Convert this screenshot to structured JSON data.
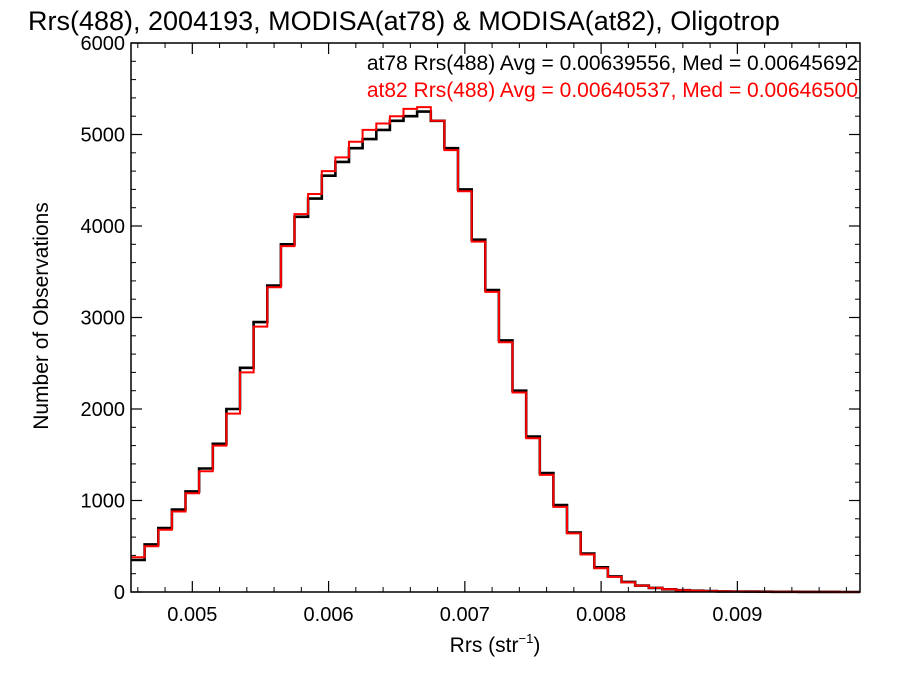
{
  "chart_data": {
    "type": "line",
    "style": "step-histogram",
    "title": "Rrs(488), 2004193, MODISA(at78) & MODISA(at82), Oligotrop",
    "xlabel_main": "Rrs (str",
    "xlabel_sup": "−1",
    "xlabel_close": ")",
    "ylabel": "Number of Observations",
    "xlim": [
      0.00455,
      0.0099
    ],
    "ylim": [
      0,
      6000
    ],
    "x_ticks": [
      0.005,
      0.006,
      0.007,
      0.008,
      0.009
    ],
    "x_tick_labels": [
      "0.005",
      "0.006",
      "0.007",
      "0.008",
      "0.009"
    ],
    "y_ticks": [
      0,
      1000,
      2000,
      3000,
      4000,
      5000,
      6000
    ],
    "y_tick_labels": [
      "0",
      "1000",
      "2000",
      "3000",
      "4000",
      "5000",
      "6000"
    ],
    "grid": false,
    "legend_position": "top-right",
    "series": [
      {
        "name": "at78",
        "label": "at78 Rrs(488) Avg = 0.00639556, Med = 0.00645692",
        "color": "#000000",
        "points": [
          [
            0.00455,
            350
          ],
          [
            0.00465,
            520
          ],
          [
            0.00475,
            700
          ],
          [
            0.00485,
            900
          ],
          [
            0.00495,
            1100
          ],
          [
            0.00505,
            1350
          ],
          [
            0.00515,
            1620
          ],
          [
            0.00525,
            2000
          ],
          [
            0.00535,
            2450
          ],
          [
            0.00545,
            2950
          ],
          [
            0.00555,
            3350
          ],
          [
            0.00565,
            3800
          ],
          [
            0.00575,
            4100
          ],
          [
            0.00585,
            4300
          ],
          [
            0.00595,
            4550
          ],
          [
            0.00605,
            4700
          ],
          [
            0.00615,
            4850
          ],
          [
            0.00625,
            4950
          ],
          [
            0.00635,
            5050
          ],
          [
            0.00645,
            5150
          ],
          [
            0.00655,
            5200
          ],
          [
            0.00665,
            5250
          ],
          [
            0.00675,
            5150
          ],
          [
            0.00685,
            4850
          ],
          [
            0.00695,
            4400
          ],
          [
            0.00705,
            3850
          ],
          [
            0.00715,
            3300
          ],
          [
            0.00725,
            2750
          ],
          [
            0.00735,
            2200
          ],
          [
            0.00745,
            1700
          ],
          [
            0.00755,
            1300
          ],
          [
            0.00765,
            950
          ],
          [
            0.00775,
            650
          ],
          [
            0.00785,
            420
          ],
          [
            0.00795,
            270
          ],
          [
            0.00805,
            170
          ],
          [
            0.00815,
            110
          ],
          [
            0.00825,
            70
          ],
          [
            0.00835,
            45
          ],
          [
            0.00845,
            30
          ],
          [
            0.00855,
            20
          ],
          [
            0.00865,
            14
          ],
          [
            0.00875,
            10
          ],
          [
            0.00885,
            7
          ],
          [
            0.00895,
            5
          ],
          [
            0.00905,
            4
          ],
          [
            0.00915,
            3
          ],
          [
            0.00925,
            2
          ],
          [
            0.00935,
            2
          ],
          [
            0.00945,
            1
          ],
          [
            0.00955,
            1
          ],
          [
            0.00965,
            1
          ],
          [
            0.00975,
            0
          ],
          [
            0.00985,
            0
          ]
        ]
      },
      {
        "name": "at82",
        "label": "at82 Rrs(488) Avg = 0.00640537, Med = 0.00646500",
        "color": "#ff0000",
        "points": [
          [
            0.00455,
            380
          ],
          [
            0.00465,
            500
          ],
          [
            0.00475,
            680
          ],
          [
            0.00485,
            880
          ],
          [
            0.00495,
            1080
          ],
          [
            0.00505,
            1320
          ],
          [
            0.00515,
            1600
          ],
          [
            0.00525,
            1950
          ],
          [
            0.00535,
            2400
          ],
          [
            0.00545,
            2900
          ],
          [
            0.00555,
            3330
          ],
          [
            0.00565,
            3780
          ],
          [
            0.00575,
            4130
          ],
          [
            0.00585,
            4350
          ],
          [
            0.00595,
            4600
          ],
          [
            0.00605,
            4750
          ],
          [
            0.00615,
            4920
          ],
          [
            0.00625,
            5050
          ],
          [
            0.00635,
            5120
          ],
          [
            0.00645,
            5200
          ],
          [
            0.00655,
            5280
          ],
          [
            0.00665,
            5300
          ],
          [
            0.00675,
            5150
          ],
          [
            0.00685,
            4830
          ],
          [
            0.00695,
            4380
          ],
          [
            0.00705,
            3830
          ],
          [
            0.00715,
            3280
          ],
          [
            0.00725,
            2730
          ],
          [
            0.00735,
            2180
          ],
          [
            0.00745,
            1680
          ],
          [
            0.00755,
            1280
          ],
          [
            0.00765,
            930
          ],
          [
            0.00775,
            640
          ],
          [
            0.00785,
            410
          ],
          [
            0.00795,
            260
          ],
          [
            0.00805,
            165
          ],
          [
            0.00815,
            105
          ],
          [
            0.00825,
            70
          ],
          [
            0.00835,
            45
          ],
          [
            0.00845,
            30
          ],
          [
            0.00855,
            20
          ],
          [
            0.00865,
            14
          ],
          [
            0.00875,
            10
          ],
          [
            0.00885,
            7
          ],
          [
            0.00895,
            5
          ],
          [
            0.00905,
            4
          ],
          [
            0.00915,
            3
          ],
          [
            0.00925,
            2
          ],
          [
            0.00935,
            2
          ],
          [
            0.00945,
            1
          ],
          [
            0.00955,
            1
          ],
          [
            0.00965,
            1
          ],
          [
            0.00975,
            0
          ],
          [
            0.00985,
            0
          ]
        ]
      }
    ]
  }
}
